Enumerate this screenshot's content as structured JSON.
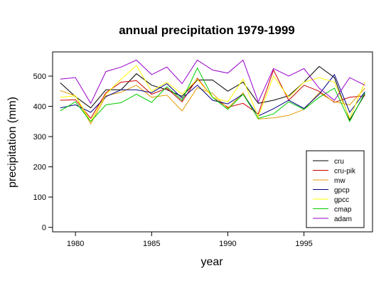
{
  "chart_data": {
    "type": "line",
    "title": "annual precipitation 1979-1999",
    "xlabel": "year",
    "ylabel": "precipitation (mm)",
    "x": [
      1979,
      1980,
      1981,
      1982,
      1983,
      1984,
      1985,
      1986,
      1987,
      1988,
      1989,
      1990,
      1991,
      1992,
      1993,
      1994,
      1995,
      1996,
      1997,
      1998,
      1999
    ],
    "xlim": [
      1978.5,
      1999.5
    ],
    "ylim": [
      -15,
      580
    ],
    "x_ticks": [
      "1980",
      "1985",
      "1990",
      "1995"
    ],
    "y_ticks": [
      "0",
      "100",
      "200",
      "300",
      "400",
      "500"
    ],
    "grid": false,
    "legend_position": "bottom-right",
    "series": [
      {
        "name": "cru",
        "color": "#000000",
        "values": [
          478,
          432,
          395,
          455,
          455,
          508,
          470,
          455,
          433,
          487,
          487,
          450,
          480,
          410,
          420,
          435,
          480,
          532,
          495,
          355,
          440
        ]
      },
      {
        "name": "cru-pik",
        "color": "#cc0000",
        "values": [
          420,
          422,
          360,
          445,
          480,
          485,
          440,
          460,
          415,
          493,
          430,
          397,
          410,
          375,
          520,
          420,
          470,
          450,
          413,
          430,
          435
        ]
      },
      {
        "name": "mw",
        "color": "#e69900",
        "values": [
          452,
          435,
          342,
          435,
          447,
          470,
          430,
          437,
          385,
          462,
          443,
          393,
          445,
          358,
          362,
          370,
          390,
          445,
          415,
          405,
          460
        ]
      },
      {
        "name": "gpcp",
        "color": "#000080",
        "values": [
          395,
          405,
          380,
          432,
          455,
          455,
          445,
          475,
          427,
          470,
          420,
          408,
          440,
          368,
          392,
          420,
          393,
          440,
          505,
          380,
          448
        ]
      },
      {
        "name": "gpcc",
        "color": "#ffff00",
        "values": [
          430,
          435,
          350,
          440,
          490,
          535,
          450,
          480,
          440,
          490,
          430,
          415,
          490,
          365,
          500,
          430,
          480,
          495,
          480,
          360,
          480
        ]
      },
      {
        "name": "cmap",
        "color": "#00cc00",
        "values": [
          385,
          415,
          350,
          405,
          412,
          440,
          413,
          465,
          420,
          527,
          430,
          390,
          440,
          360,
          375,
          415,
          390,
          430,
          460,
          350,
          445
        ]
      },
      {
        "name": "adam",
        "color": "#9900cc",
        "values": [
          490,
          495,
          410,
          515,
          530,
          553,
          505,
          530,
          475,
          553,
          520,
          510,
          553,
          415,
          525,
          500,
          525,
          460,
          420,
          495,
          470
        ]
      }
    ]
  }
}
